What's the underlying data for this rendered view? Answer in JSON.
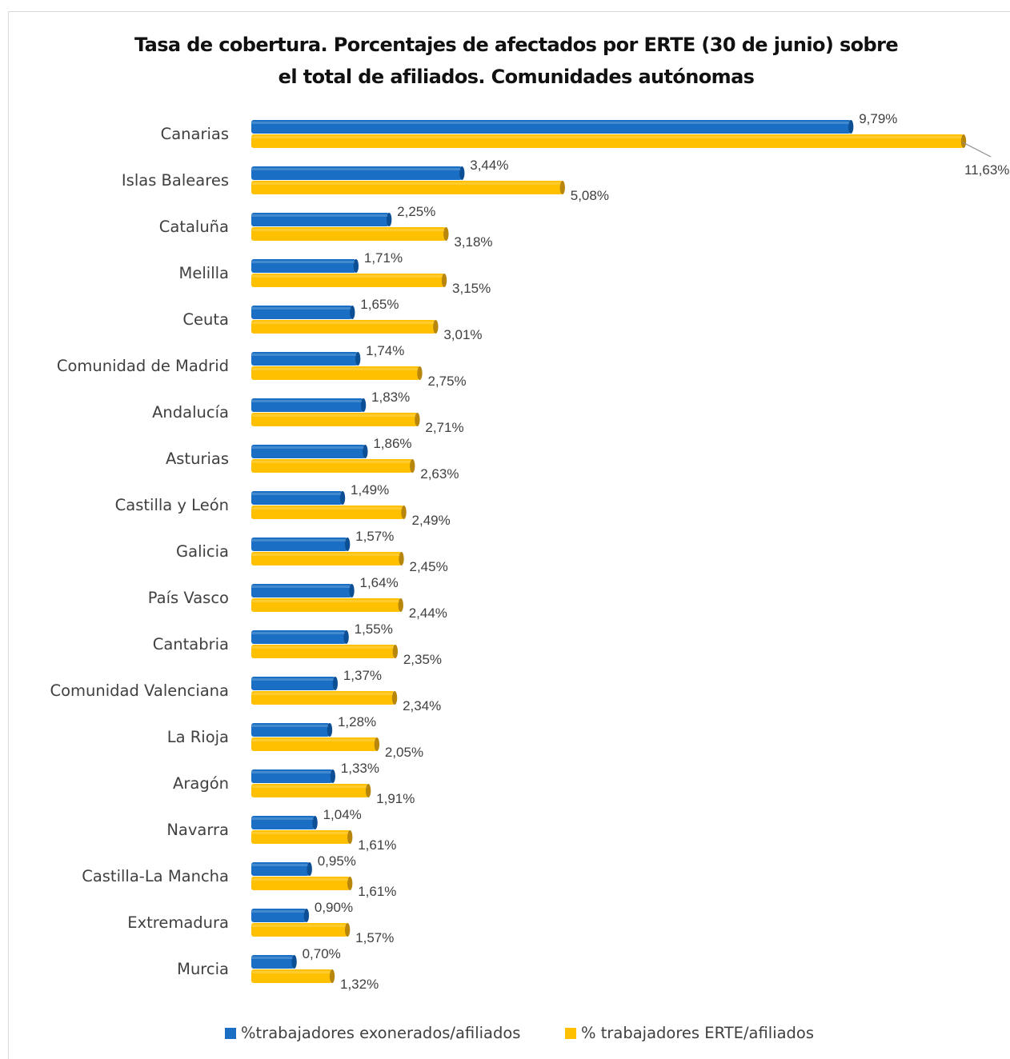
{
  "chart_data": {
    "type": "bar",
    "orientation": "horizontal",
    "title": "Tasa de cobertura. Porcentajes de afectados por ERTE (30 de junio) sobre el total de afiliados. Comunidades autónomas",
    "title_lines": [
      "Tasa de cobertura. Porcentajes de afectados por ERTE (30 de junio) sobre",
      "el total de afiliados. Comunidades autónomas"
    ],
    "xlabel": "",
    "ylabel": "",
    "categories": [
      "Canarias",
      "Islas Baleares",
      "Cataluña",
      "Melilla",
      "Ceuta",
      "Comunidad de Madrid",
      "Andalucía",
      "Asturias",
      "Castilla y León",
      "Galicia",
      "País Vasco",
      "Cantabria",
      "Comunidad Valenciana",
      "La Rioja",
      "Aragón",
      "Navarra",
      "Castilla-La Mancha",
      "Extremadura",
      "Murcia"
    ],
    "series": [
      {
        "name": "%trabajadores exonerados/afiliados",
        "color": "#1a6fc4",
        "values": [
          9.79,
          3.44,
          2.25,
          1.71,
          1.65,
          1.74,
          1.83,
          1.86,
          1.49,
          1.57,
          1.64,
          1.55,
          1.37,
          1.28,
          1.33,
          1.04,
          0.95,
          0.9,
          0.7
        ],
        "labels": [
          "9,79%",
          "3,44%",
          "2,25%",
          "1,71%",
          "1,65%",
          "1,74%",
          "1,83%",
          "1,86%",
          "1,49%",
          "1,57%",
          "1,64%",
          "1,55%",
          "1,37%",
          "1,28%",
          "1,33%",
          "1,04%",
          "0,95%",
          "0,90%",
          "0,70%"
        ]
      },
      {
        "name": "% trabajadores ERTE/afiliados",
        "color": "#ffc000",
        "values": [
          11.63,
          5.08,
          3.18,
          3.15,
          3.01,
          2.75,
          2.71,
          2.63,
          2.49,
          2.45,
          2.44,
          2.35,
          2.34,
          2.05,
          1.91,
          1.61,
          1.61,
          1.57,
          1.32
        ],
        "labels": [
          "11,63%",
          "5,08%",
          "3,18%",
          "3,15%",
          "3,01%",
          "2,75%",
          "2,71%",
          "2,63%",
          "2,49%",
          "2,45%",
          "2,44%",
          "2,35%",
          "2,34%",
          "2,05%",
          "1,91%",
          "1,61%",
          "1,61%",
          "1,57%",
          "1,32%"
        ]
      }
    ],
    "xlim": [
      0,
      11.63
    ],
    "grid": false,
    "axis_visible": false,
    "legend_position": "bottom"
  }
}
